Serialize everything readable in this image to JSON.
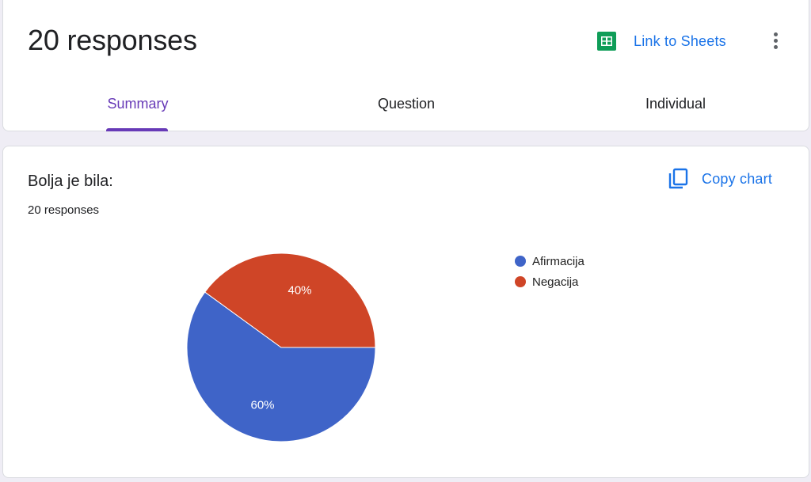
{
  "header": {
    "title": "20 responses",
    "link_to_sheets_label": "Link to Sheets",
    "sheets_icon": "google-sheets-icon",
    "more_icon": "more-vert-icon"
  },
  "tabs": [
    {
      "label": "Summary",
      "active": true
    },
    {
      "label": "Question",
      "active": false
    },
    {
      "label": "Individual",
      "active": false
    }
  ],
  "question": {
    "title": "Bolja je bila:",
    "response_count": "20 responses",
    "copy_chart_label": "Copy chart",
    "copy_icon": "copy-icon"
  },
  "colors": {
    "accent": "#673ab7",
    "link": "#1a73e8",
    "sheets_green": "#0f9d58",
    "afirmacija": "#3f64c8",
    "negacija": "#cf4527"
  },
  "chart_data": {
    "type": "pie",
    "categories": [
      "Afirmacija",
      "Negacija"
    ],
    "values": [
      60,
      40
    ],
    "data_labels": [
      "60%",
      "40%"
    ],
    "colors": [
      "#3f64c8",
      "#cf4527"
    ],
    "legend_position": "right"
  }
}
